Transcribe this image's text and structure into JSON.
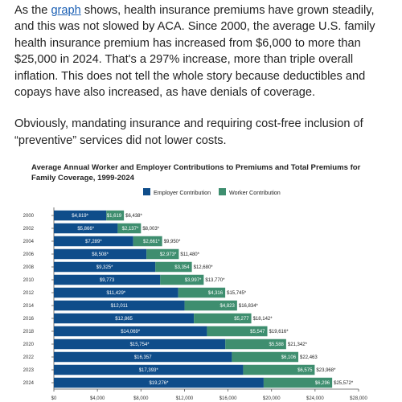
{
  "article": {
    "para1_before_link": "As the ",
    "para1_link": "graph",
    "para1_after_link": " shows, health insurance premiums have grown steadily, and this was not slowed by ACA. Since 2000, the average U.S. family health insurance premium has increased from $6,000 to more than $25,000 in 2024. That's a 297% increase, more than triple overall inflation. This does not tell the whole story because deductibles and copays have also increased, as have denials of coverage.",
    "para2": "Obviously, mandating insurance and requiring cost-free inclusion of “preventive” services did not lower costs."
  },
  "chart_data": {
    "type": "bar",
    "orientation": "horizontal",
    "stacked": true,
    "title": "Average Annual Worker and Employer Contributions to Premiums and Total Premiums for Family Coverage, 1999-2024",
    "legend_position": "top",
    "categories": [
      "2000",
      "2002",
      "2004",
      "2006",
      "2008",
      "2010",
      "2012",
      "2014",
      "2016",
      "2018",
      "2020",
      "2022",
      "2023",
      "2024"
    ],
    "series": [
      {
        "name": "Employer Contribution",
        "color": "#0f4d8a",
        "values": [
          4819,
          5866,
          7289,
          8508,
          9325,
          9773,
          11429,
          12011,
          12865,
          14069,
          15754,
          16357,
          17393,
          19276
        ],
        "labels": [
          "$4,819*",
          "$5,866*",
          "$7,289*",
          "$8,508*",
          "$9,325*",
          "$9,773",
          "$11,429*",
          "$12,011",
          "$12,865",
          "$14,069*",
          "$15,754*",
          "$16,357",
          "$17,393*",
          "$19,276*"
        ]
      },
      {
        "name": "Worker Contribution",
        "color": "#3e8e6f",
        "values": [
          1619,
          2137,
          2661,
          2973,
          3354,
          3997,
          4316,
          4823,
          5277,
          5547,
          5588,
          6106,
          6575,
          6296
        ],
        "labels": [
          "$1,619",
          "$2,137*",
          "$2,661*",
          "$2,973*",
          "$3,354",
          "$3,997*",
          "$4,316",
          "$4,823",
          "$5,277",
          "$5,547",
          "$5,588",
          "$6,106",
          "$6,575",
          "$6,296"
        ]
      }
    ],
    "totals": {
      "values": [
        6438,
        8003,
        9950,
        11480,
        12680,
        13770,
        15745,
        16834,
        18142,
        19616,
        21342,
        22463,
        23968,
        25572
      ],
      "labels": [
        "$6,438*",
        "$8,003*",
        "$9,950*",
        "$11,480*",
        "$12,680*",
        "$13,770*",
        "$15,745*",
        "$16,834*",
        "$18,142*",
        "$19,616*",
        "$21,342*",
        "$22,463",
        "$23,968*",
        "$25,572*"
      ]
    },
    "x_ticks": [
      0,
      4000,
      8000,
      12000,
      16000,
      20000,
      24000,
      28000
    ],
    "x_tick_labels": [
      "$0",
      "$4,000",
      "$8,000",
      "$12,000",
      "$16,000",
      "$20,000",
      "$24,000",
      "$28,000"
    ],
    "xlim": [
      0,
      28000
    ],
    "grid": false
  }
}
